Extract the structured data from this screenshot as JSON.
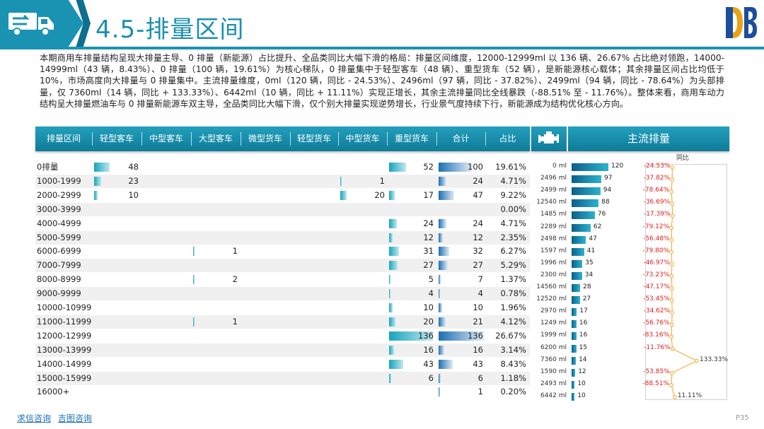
{
  "header": {
    "title": "4.5-排量区间"
  },
  "summary": "本期商用车排量结构呈现大排量主导、0 排量（新能源）占比提升、全品类同比大幅下滑的格局：排量区间维度，12000-12999ml 以 136 辆、26.67% 占比绝对领跑，14000-14999ml（43 辆，8.43%）、0 排量（100 辆，19.61%）为核心梯队，0 排量集中于轻型客车（48 辆）、重型货车（52 辆），是新能源核心载体；其余排量区间占比均低于 10%，市场高度向大排量与 0 排量集中。主流排量维度，0ml（120 辆，同比 - 24.53%）、2496ml（97 辆，同比 - 37.82%）、2499ml（94 辆，同比 - 78.64%）为头部排量，仅 7360ml（14 辆，同比 + 133.33%）、6442ml（10 辆，同比 + 11.11%）实现正增长，其余主流排量同比全线暴跌（-88.51% 至 - 11.76%）。整体来看，商用车动力结构呈大排量燃油车与 0 排量新能源车双主导，全品类同比大幅下滑，仅个别大排量实现逆势增长，行业景气度持续下行，新能源成为结构优化核心方向。",
  "table": {
    "headers": [
      "排量区间",
      "轻型客车",
      "中型客车",
      "大型客车",
      "微型货车",
      "轻型货车",
      "中型货车",
      "重型货车",
      "合计",
      "占比"
    ],
    "rows": [
      {
        "cat": "0排量",
        "lk": "48",
        "mk": "",
        "dk": "",
        "wh": "",
        "lh": "",
        "mh": "",
        "zh": "52",
        "total": "100",
        "pct": "19.61%"
      },
      {
        "cat": "1000-1999",
        "lk": "23",
        "mk": "",
        "dk": "",
        "wh": "",
        "lh": "",
        "mh": "1",
        "zh": "",
        "total": "24",
        "pct": "4.71%"
      },
      {
        "cat": "2000-2999",
        "lk": "10",
        "mk": "",
        "dk": "",
        "wh": "",
        "lh": "",
        "mh": "20",
        "zh": "17",
        "total": "47",
        "pct": "9.22%"
      },
      {
        "cat": "3000-3999",
        "lk": "",
        "mk": "",
        "dk": "",
        "wh": "",
        "lh": "",
        "mh": "",
        "zh": "",
        "total": "",
        "pct": "0.00%"
      },
      {
        "cat": "4000-4999",
        "lk": "",
        "mk": "",
        "dk": "",
        "wh": "",
        "lh": "",
        "mh": "",
        "zh": "24",
        "total": "24",
        "pct": "4.71%"
      },
      {
        "cat": "5000-5999",
        "lk": "",
        "mk": "",
        "dk": "",
        "wh": "",
        "lh": "",
        "mh": "",
        "zh": "12",
        "total": "12",
        "pct": "2.35%"
      },
      {
        "cat": "6000-6999",
        "lk": "",
        "mk": "",
        "dk": "1",
        "wh": "",
        "lh": "",
        "mh": "",
        "zh": "31",
        "total": "32",
        "pct": "6.27%"
      },
      {
        "cat": "7000-7999",
        "lk": "",
        "mk": "",
        "dk": "",
        "wh": "",
        "lh": "",
        "mh": "",
        "zh": "27",
        "total": "27",
        "pct": "5.29%"
      },
      {
        "cat": "8000-8999",
        "lk": "",
        "mk": "",
        "dk": "2",
        "wh": "",
        "lh": "",
        "mh": "",
        "zh": "5",
        "total": "7",
        "pct": "1.37%"
      },
      {
        "cat": "9000-9999",
        "lk": "",
        "mk": "",
        "dk": "",
        "wh": "",
        "lh": "",
        "mh": "",
        "zh": "4",
        "total": "4",
        "pct": "0.78%"
      },
      {
        "cat": "10000-10999",
        "lk": "",
        "mk": "",
        "dk": "",
        "wh": "",
        "lh": "",
        "mh": "",
        "zh": "10",
        "total": "10",
        "pct": "1.96%"
      },
      {
        "cat": "11000-11999",
        "lk": "",
        "mk": "",
        "dk": "1",
        "wh": "",
        "lh": "",
        "mh": "",
        "zh": "20",
        "total": "21",
        "pct": "4.12%"
      },
      {
        "cat": "12000-12999",
        "lk": "",
        "mk": "",
        "dk": "",
        "wh": "",
        "lh": "",
        "mh": "",
        "zh": "136",
        "total": "136",
        "pct": "26.67%"
      },
      {
        "cat": "13000-13999",
        "lk": "",
        "mk": "",
        "dk": "",
        "wh": "",
        "lh": "",
        "mh": "",
        "zh": "16",
        "total": "16",
        "pct": "3.14%"
      },
      {
        "cat": "14000-14999",
        "lk": "",
        "mk": "",
        "dk": "",
        "wh": "",
        "lh": "",
        "mh": "",
        "zh": "43",
        "total": "43",
        "pct": "8.43%"
      },
      {
        "cat": "15000-15999",
        "lk": "",
        "mk": "",
        "dk": "",
        "wh": "",
        "lh": "",
        "mh": "",
        "zh": "6",
        "total": "6",
        "pct": "1.18%"
      },
      {
        "cat": "16000+",
        "lk": "",
        "mk": "",
        "dk": "",
        "wh": "",
        "lh": "",
        "mh": "",
        "zh": "",
        "total": "1",
        "pct": "0.20%"
      }
    ]
  },
  "mainstream": {
    "title": "主流排量",
    "yoy_header": "同比",
    "chart_data": {
      "type": "bar",
      "categories": [
        "0 ml",
        "2496 ml",
        "2499 ml",
        "12540 ml",
        "1485 ml",
        "2289 ml",
        "2498 ml",
        "1597 ml",
        "1996 ml",
        "2300 ml",
        "14560 ml",
        "12520 ml",
        "2970 ml",
        "1249 ml",
        "1999 ml",
        "6200 ml",
        "7360 ml",
        "1590 ml",
        "2493 ml",
        "6442 ml"
      ],
      "values": [
        120,
        97,
        94,
        88,
        76,
        62,
        47,
        41,
        35,
        34,
        28,
        27,
        17,
        16,
        16,
        15,
        14,
        12,
        10,
        10
      ],
      "yoy": [
        -24.53,
        -37.82,
        -78.64,
        -36.69,
        -17.39,
        -79.12,
        -56.48,
        -79.8,
        -46.97,
        -73.23,
        -47.17,
        -53.45,
        -34.62,
        -56.76,
        -83.16,
        -11.76,
        133.33,
        -53.85,
        -88.51,
        11.11
      ],
      "yoy_labels": [
        "-24.53%",
        "-37.82%",
        "-78.64%",
        "-36.69%",
        "-17.39%",
        "-79.12%",
        "-56.48%",
        "-79.80%",
        "-46.97%",
        "-73.23%",
        "-47.17%",
        "-53.45%",
        "-34.62%",
        "-56.76%",
        "-83.16%",
        "-11.76%",
        "133.33%",
        "-53.85%",
        "-88.51%",
        "11.11%"
      ],
      "colors": {
        "bar": "#1684b3",
        "line": "#f5a623",
        "negative": "#e02020"
      }
    }
  },
  "footer": {
    "link1": "求信咨询",
    "link2": "吉图咨询",
    "page": "P35"
  }
}
